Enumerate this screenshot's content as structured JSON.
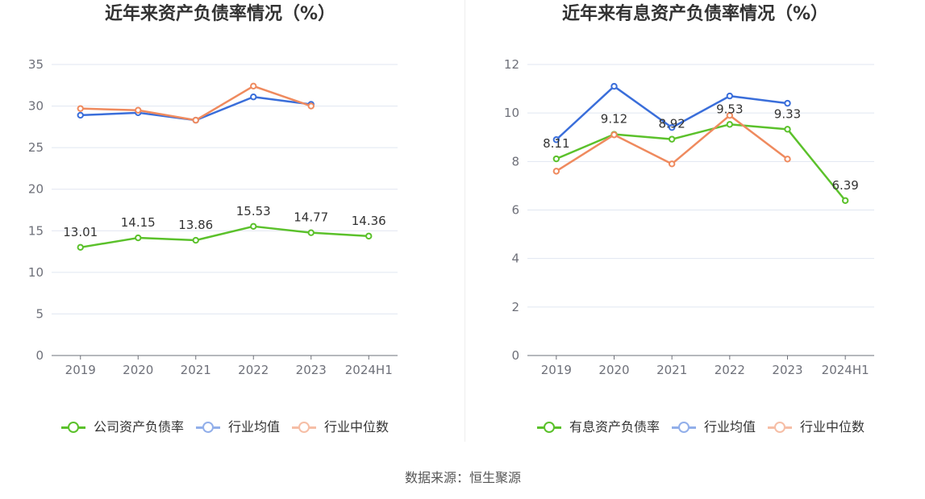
{
  "chart_data": [
    {
      "type": "line",
      "title": "近年来资产负债率情况（%）",
      "categories": [
        "2019",
        "2020",
        "2021",
        "2022",
        "2023",
        "2024H1"
      ],
      "ylim": [
        0,
        35
      ],
      "yticks": [
        0,
        5,
        10,
        15,
        20,
        25,
        30,
        35
      ],
      "grid": true,
      "legend": "bottom",
      "series": [
        {
          "name": "公司资产负债率",
          "color": "#5bc12b",
          "show_labels": true,
          "values": [
            13.01,
            14.15,
            13.86,
            15.53,
            14.77,
            14.36
          ]
        },
        {
          "name": "行业均值",
          "color": "#3a6eda",
          "values": [
            28.9,
            29.2,
            28.3,
            31.1,
            30.2,
            null
          ]
        },
        {
          "name": "行业中位数",
          "color": "#ef8a5e",
          "values": [
            29.7,
            29.5,
            28.3,
            32.4,
            30.0,
            null
          ]
        }
      ]
    },
    {
      "type": "line",
      "title": "近年来有息资产负债率情况（%）",
      "categories": [
        "2019",
        "2020",
        "2021",
        "2022",
        "2023",
        "2024H1"
      ],
      "ylim": [
        0,
        12
      ],
      "yticks": [
        0,
        2,
        4,
        6,
        8,
        10,
        12
      ],
      "grid": true,
      "legend": "bottom",
      "series": [
        {
          "name": "有息资产负债率",
          "color": "#5bc12b",
          "show_labels": true,
          "values": [
            8.11,
            9.12,
            8.92,
            9.53,
            9.33,
            6.39
          ]
        },
        {
          "name": "行业均值",
          "color": "#3a6eda",
          "values": [
            8.9,
            11.1,
            9.4,
            10.7,
            10.4,
            null
          ]
        },
        {
          "name": "行业中位数",
          "color": "#ef8a5e",
          "values": [
            7.6,
            9.1,
            7.9,
            9.9,
            8.1,
            null
          ]
        }
      ]
    }
  ],
  "source": "数据来源：恒生聚源"
}
